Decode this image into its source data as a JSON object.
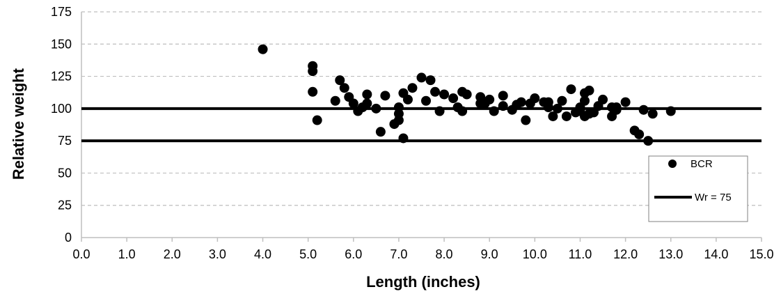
{
  "chart_data": {
    "type": "scatter",
    "title": "",
    "xlabel": "Length (inches)",
    "ylabel": "Relative weight",
    "xlim": [
      0,
      15
    ],
    "ylim": [
      0,
      175
    ],
    "x_ticks": [
      "0.0",
      "1.0",
      "2.0",
      "3.0",
      "4.0",
      "5.0",
      "6.0",
      "7.0",
      "8.0",
      "9.0",
      "10.0",
      "11.0",
      "12.0",
      "13.0",
      "14.0",
      "15.0"
    ],
    "y_ticks": [
      "0",
      "25",
      "50",
      "75",
      "100",
      "125",
      "150",
      "175"
    ],
    "grid": "horizontal dashed",
    "legend_position": "right",
    "colors": {
      "points": "#000000",
      "lines": "#000000",
      "grid": "#bfbfbf",
      "axis": "#bfbfbf"
    },
    "series": [
      {
        "name": "BCR",
        "type": "scatter",
        "points": [
          [
            4.0,
            146
          ],
          [
            5.1,
            133
          ],
          [
            5.1,
            129
          ],
          [
            5.1,
            113
          ],
          [
            5.2,
            91
          ],
          [
            5.6,
            106
          ],
          [
            5.7,
            122
          ],
          [
            5.8,
            116
          ],
          [
            5.9,
            109
          ],
          [
            6.0,
            104
          ],
          [
            6.1,
            98
          ],
          [
            6.2,
            101
          ],
          [
            6.3,
            111
          ],
          [
            6.3,
            104
          ],
          [
            6.5,
            100
          ],
          [
            6.6,
            82
          ],
          [
            6.7,
            110
          ],
          [
            6.9,
            88
          ],
          [
            7.0,
            101
          ],
          [
            7.0,
            96
          ],
          [
            7.0,
            91
          ],
          [
            7.1,
            112
          ],
          [
            7.1,
            77
          ],
          [
            7.2,
            107
          ],
          [
            7.3,
            116
          ],
          [
            7.5,
            124
          ],
          [
            7.6,
            106
          ],
          [
            7.7,
            122
          ],
          [
            7.8,
            113
          ],
          [
            7.9,
            98
          ],
          [
            8.0,
            111
          ],
          [
            8.2,
            108
          ],
          [
            8.3,
            101
          ],
          [
            8.4,
            113
          ],
          [
            8.4,
            98
          ],
          [
            8.5,
            111
          ],
          [
            8.8,
            109
          ],
          [
            8.8,
            104
          ],
          [
            8.9,
            104
          ],
          [
            9.0,
            107
          ],
          [
            9.1,
            98
          ],
          [
            9.3,
            110
          ],
          [
            9.3,
            102
          ],
          [
            9.5,
            99
          ],
          [
            9.6,
            103
          ],
          [
            9.7,
            105
          ],
          [
            9.8,
            91
          ],
          [
            9.9,
            104
          ],
          [
            10.0,
            108
          ],
          [
            10.2,
            105
          ],
          [
            10.3,
            105
          ],
          [
            10.3,
            101
          ],
          [
            10.4,
            94
          ],
          [
            10.5,
            100
          ],
          [
            10.6,
            106
          ],
          [
            10.7,
            94
          ],
          [
            10.8,
            115
          ],
          [
            10.9,
            97
          ],
          [
            11.0,
            101
          ],
          [
            11.0,
            98
          ],
          [
            11.1,
            112
          ],
          [
            11.1,
            106
          ],
          [
            11.1,
            94
          ],
          [
            11.2,
            114
          ],
          [
            11.2,
            96
          ],
          [
            11.3,
            97
          ],
          [
            11.4,
            102
          ],
          [
            11.5,
            107
          ],
          [
            11.7,
            101
          ],
          [
            11.7,
            94
          ],
          [
            11.8,
            101
          ],
          [
            11.8,
            99
          ],
          [
            12.0,
            105
          ],
          [
            12.2,
            83
          ],
          [
            12.3,
            80
          ],
          [
            12.4,
            99
          ],
          [
            12.5,
            75
          ],
          [
            12.6,
            96
          ],
          [
            13.0,
            98
          ]
        ]
      },
      {
        "name": "Wr = 75",
        "type": "hline",
        "y": 75
      },
      {
        "name": "",
        "type": "hline",
        "y": 100
      }
    ]
  }
}
